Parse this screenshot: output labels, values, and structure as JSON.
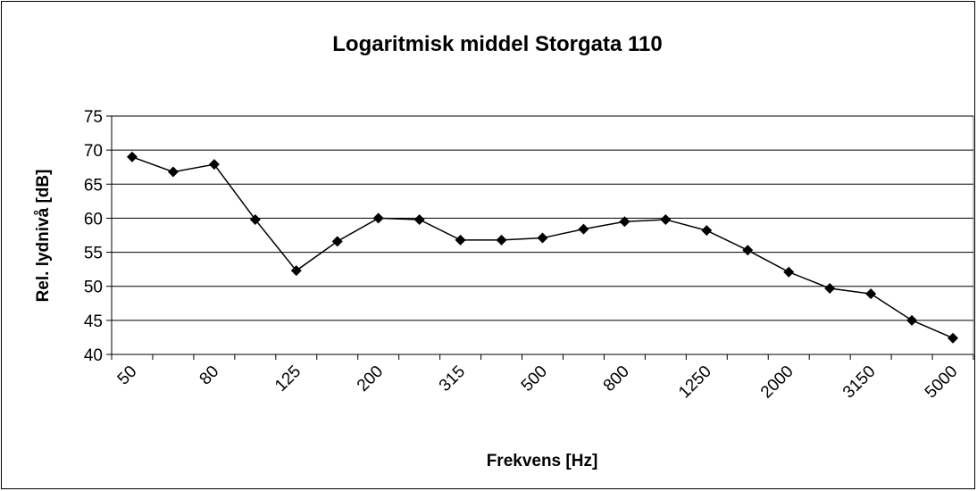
{
  "chart_data": {
    "type": "line",
    "title": "Logaritmisk middel Storgata 110",
    "x_label": "Frekvens [Hz]",
    "y_label": "Rel. lydnivå [dB]",
    "categories": [
      "50",
      null,
      "80",
      null,
      "125",
      null,
      "200",
      null,
      "315",
      null,
      "500",
      null,
      "800",
      null,
      "1250",
      null,
      "2000",
      null,
      "3150",
      null,
      "5000"
    ],
    "series": [
      {
        "name": "Storgata 110",
        "color": "#000000",
        "values": [
          69,
          66.8,
          67.9,
          59.8,
          52.3,
          56.6,
          60,
          59.8,
          56.8,
          56.8,
          57.1,
          58.4,
          59.5,
          59.8,
          58.2,
          55.3,
          52.1,
          49.7,
          48.9,
          45,
          42.4
        ]
      }
    ],
    "ylim": [
      40,
      75
    ],
    "yticks": [
      40,
      45,
      50,
      55,
      60,
      65,
      70,
      75
    ],
    "grid": true
  }
}
